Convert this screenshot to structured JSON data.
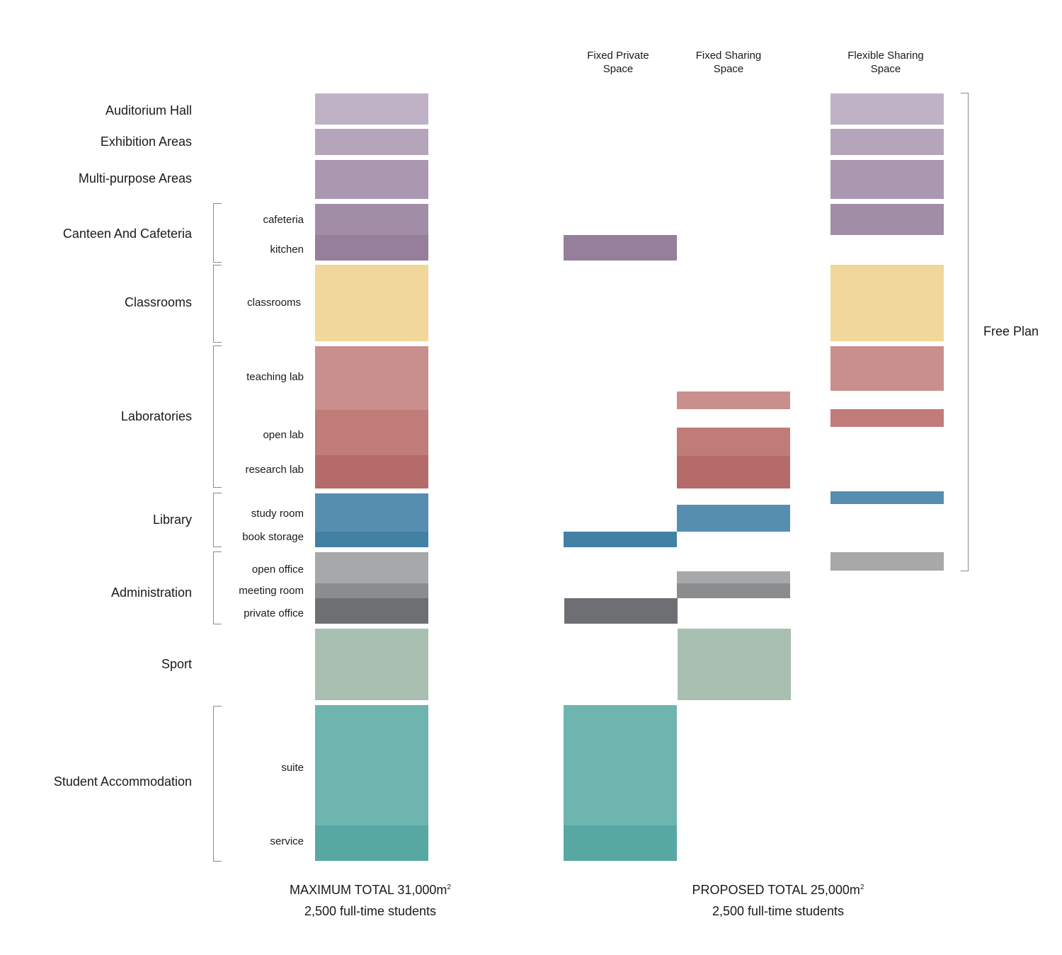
{
  "column_headers": {
    "fixed_private": "Fixed Private\nSpace",
    "fixed_sharing": "Fixed Sharing\nSpace",
    "flexible_sharing": "Flexible Sharing\nSpace"
  },
  "free_plan": "Free Plan",
  "categories": {
    "auditorium": "Auditorium Hall",
    "exhibition": "Exhibition Areas",
    "multipurpose": "Multi-purpose Areas",
    "canteen": "Canteen And Cafeteria",
    "classrooms": "Classrooms",
    "laboratories": "Laboratories",
    "library": "Library",
    "administration": "Administration",
    "sport": "Sport",
    "accommodation": "Student Accommodation"
  },
  "subcategories": {
    "cafeteria": "cafeteria",
    "kitchen": "kitchen",
    "classrooms": "classrooms",
    "teaching_lab": "teaching lab",
    "open_lab": "open lab",
    "research_lab": "research lab",
    "study_room": "study room",
    "book_storage": "book storage",
    "open_office": "open office",
    "meeting_room": "meeting room",
    "private_office": "private office",
    "suite": "suite",
    "service": "service"
  },
  "footer": {
    "maximum_total": "MAXIMUM TOTAL 31,000m",
    "maximum_sup": "2",
    "maximum_students": "2,500 full-time students",
    "proposed_total": "PROPOSED TOTAL 25,000m",
    "proposed_sup": "2",
    "proposed_students": "2,500 full-time students"
  },
  "colors": {
    "auditorium": "#c0b2c6",
    "exhibition": "#b5a5bb",
    "multipurpose": "#aa97b0",
    "cafeteria": "#a18ea6",
    "kitchen": "#957f9b",
    "classrooms": "#f1d799",
    "teaching_lab": "#c88f8c",
    "open_lab": "#bf7c79",
    "research_lab": "#b56b69",
    "study_room": "#568eb0",
    "book_storage": "#4280a4",
    "open_office": "#a7a8aa",
    "meeting_room": "#8b8c8e",
    "private_office": "#6e6f72",
    "sport": "#a8bfb2",
    "suite": "#6eb5b0",
    "service": "#57a8a3"
  }
}
